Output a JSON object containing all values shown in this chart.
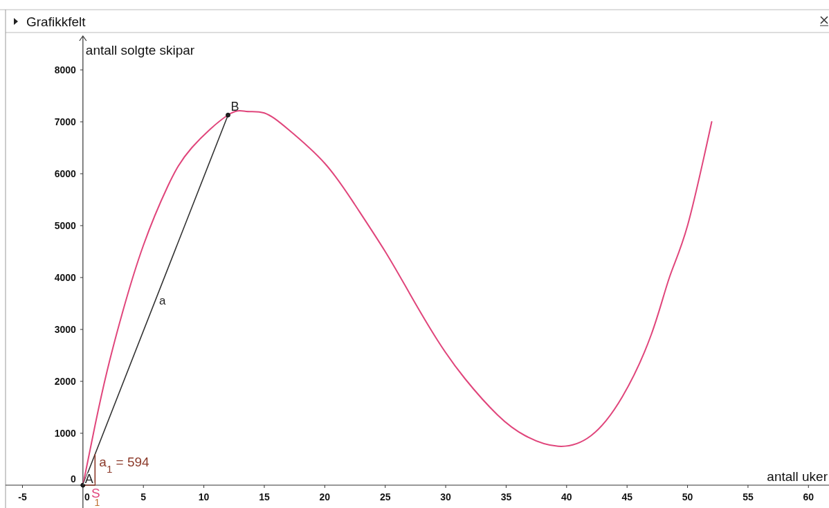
{
  "chart_data": {
    "type": "line",
    "title": "Grafikkfelt",
    "xlabel": "antall uker",
    "ylabel": "antall solgte skipar",
    "xlim": [
      -6.4,
      61.7
    ],
    "ylim": [
      -440,
      8720
    ],
    "xticks": [
      -5,
      0,
      5,
      10,
      15,
      20,
      25,
      30,
      35,
      40,
      45,
      50,
      55,
      60
    ],
    "yticks": [
      0,
      1000,
      2000,
      3000,
      4000,
      5000,
      6000,
      7000,
      8000
    ],
    "grid": false,
    "series": [
      {
        "color": "#e0457b",
        "x": [
          0,
          1,
          2,
          3.3,
          5,
          7,
          9,
          12,
          13.5,
          15,
          17,
          20,
          22.5,
          25,
          27,
          29.3,
          31.6,
          34.3,
          36.6,
          39.3,
          42,
          44.6,
          47,
          48.5,
          50,
          52
        ],
        "values": [
          0,
          1150,
          2200,
          3350,
          4620,
          5750,
          6500,
          7130,
          7200,
          7170,
          6850,
          6200,
          5400,
          4500,
          3700,
          2800,
          2050,
          1350,
          950,
          750,
          950,
          1700,
          2900,
          4000,
          5000,
          7000
        ]
      },
      {
        "color": "#333333",
        "x": [
          0,
          12
        ],
        "values": [
          0,
          7130
        ]
      },
      {
        "color": "#8b3a2a",
        "x": [
          0,
          1,
          1
        ],
        "values": [
          0,
          0,
          594
        ]
      },
      {
        "type": "scatter",
        "color": "#222222",
        "marker": "circle",
        "x": [
          0,
          12
        ],
        "values": [
          0,
          7130
        ]
      }
    ],
    "annotations": [
      {
        "text": "A",
        "x": 0,
        "y": 0
      },
      {
        "text": "B",
        "x": 12,
        "y": 7130
      },
      "a",
      {
        "text": "a$_{1}$ = 594",
        "x": 1,
        "y": 594
      },
      {
        "text": "S",
        "x": 1,
        "y": 0
      },
      {
        "text": "1",
        "x": 1,
        "y": 0
      }
    ]
  }
}
